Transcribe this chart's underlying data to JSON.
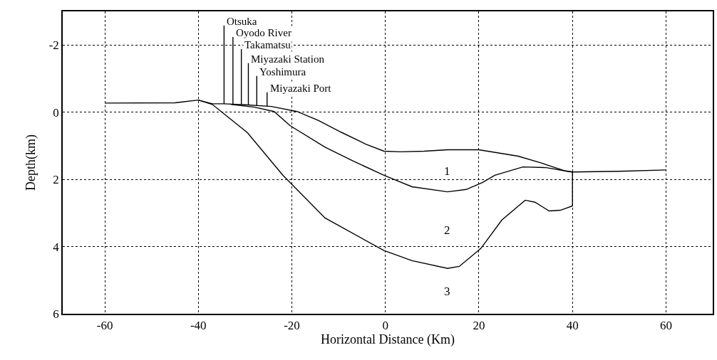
{
  "chart_data": {
    "type": "line",
    "xlabel": "Horizontal Distance (Km)",
    "ylabel": "Depth(km)",
    "xlim": [
      -69,
      70
    ],
    "xticks": [
      -60,
      -40,
      -20,
      0,
      20,
      40,
      60
    ],
    "ylim": [
      6,
      -3
    ],
    "yticks": [
      -2,
      0,
      2,
      4,
      6
    ],
    "grid": true,
    "legend": false,
    "marker": "none",
    "line_style": "solid",
    "series": [
      {
        "color": "#000000",
        "x": [
          -60,
          -45,
          -40,
          -37,
          -34.5,
          -30,
          -24.4,
          -18.9,
          -14.3,
          -9.4,
          -4.2,
          -0.3,
          3.3,
          8.3,
          13.3,
          20,
          28.4,
          33.5,
          38.5,
          40,
          50,
          60
        ],
        "values": [
          -0.27,
          -0.28,
          -0.36,
          -0.25,
          -0.25,
          -0.22,
          -0.17,
          -0.02,
          0.25,
          0.6,
          0.95,
          1.16,
          1.18,
          1.16,
          1.12,
          1.12,
          1.31,
          1.52,
          1.75,
          1.78,
          1.76,
          1.72
        ]
      },
      {
        "color": "#000000",
        "x": [
          -33,
          -28,
          -23.8,
          -20.4,
          -12.9,
          -6.8,
          -0.3,
          5.7,
          13.3,
          17.3,
          20.8,
          23.4,
          29.4,
          34.4,
          38.5,
          40
        ],
        "values": [
          -0.23,
          -0.15,
          -0.02,
          0.4,
          1.04,
          1.46,
          1.88,
          2.22,
          2.37,
          2.3,
          2.09,
          1.88,
          1.63,
          1.65,
          1.75,
          1.78
        ]
      },
      {
        "color": "#000000",
        "x": [
          -40,
          -37,
          -29.5,
          -21.9,
          -12.9,
          -0.3,
          5.7,
          13.3,
          15.8,
          20.4,
          24.9,
          29.9,
          32,
          35,
          37.4,
          40,
          40
        ],
        "values": [
          -0.36,
          -0.23,
          0.61,
          1.88,
          3.15,
          4.12,
          4.42,
          4.65,
          4.59,
          4.06,
          3.21,
          2.62,
          2.68,
          2.94,
          2.92,
          2.79,
          1.78
        ]
      },
      {
        "name": "Otsuka",
        "color": "#000000",
        "x": [
          -34.5,
          -34.5
        ],
        "values": [
          -0.25,
          -2.58
        ]
      },
      {
        "name": "Oyodo River",
        "color": "#000000",
        "x": [
          -32.6,
          -32.6
        ],
        "values": [
          -0.24,
          -2.24
        ]
      },
      {
        "name": "Takamatsu",
        "color": "#000000",
        "x": [
          -30.8,
          -30.8
        ],
        "values": [
          -0.23,
          -1.88
        ]
      },
      {
        "name": "Miyazaki Station",
        "color": "#000000",
        "x": [
          -29.3,
          -29.3
        ],
        "values": [
          -0.22,
          -1.46
        ]
      },
      {
        "name": "Yoshimura",
        "color": "#000000",
        "x": [
          -27.5,
          -27.5
        ],
        "values": [
          -0.2,
          -1.08
        ]
      },
      {
        "name": "Miyazaki Port",
        "color": "#000000",
        "x": [
          -25.3,
          -25.3
        ],
        "values": [
          -0.18,
          -0.59
        ]
      }
    ],
    "annotations": [
      "1",
      "2",
      "3"
    ]
  }
}
